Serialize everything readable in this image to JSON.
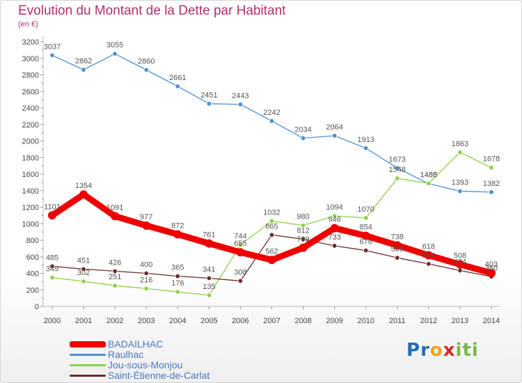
{
  "title": "Evolution du Montant de la Dette par Habitant",
  "subtitle": "(en €)",
  "logo": {
    "text": "Proxiti",
    "letters": [
      "P",
      "r",
      "o",
      "x",
      "i",
      "t",
      "i"
    ],
    "colors": [
      "#1f6db5",
      "#1f6db5",
      "#f0a020",
      "#d52a2a",
      "#7ab648",
      "#7ab648",
      "#7ab648"
    ]
  },
  "chart_data": {
    "type": "line",
    "x": [
      "2000",
      "2001",
      "2002",
      "2003",
      "2004",
      "2005",
      "2006",
      "2007",
      "2008",
      "2009",
      "2010",
      "2011",
      "2012",
      "2013",
      "2014"
    ],
    "ylim": [
      0,
      3200
    ],
    "yticks": [
      "0",
      "200",
      "400",
      "600",
      "800",
      "1000",
      "1200",
      "1400",
      "1600",
      "1800",
      "2000",
      "2200",
      "2400",
      "2600",
      "2800",
      "3000",
      "3200"
    ],
    "grid": false,
    "legend_position": "bottom-left",
    "series": [
      {
        "name": "BADAILHAC",
        "color": "#ee0000",
        "values": [
          1101,
          1354,
          1091,
          977,
          872,
          761,
          655,
          562,
          709,
          946,
          854,
          738,
          618,
          508,
          403
        ],
        "labels": [
          "1101",
          "1354",
          "1091",
          "977",
          "872",
          "761",
          "655",
          "562",
          "709",
          "946",
          "854",
          "738",
          "618",
          "508",
          "403"
        ]
      },
      {
        "name": "Raulhac",
        "color": "#4d8fd0",
        "values": [
          3037,
          2862,
          3055,
          2860,
          2661,
          2451,
          2443,
          2242,
          2034,
          2064,
          1913,
          1673,
          1485,
          1393,
          1382
        ],
        "labels": [
          "3037",
          "2862",
          "3055",
          "2860",
          "2661",
          "2451",
          "2443",
          "2242",
          "2034",
          "2064",
          "1913",
          "1673",
          "1485",
          "1393",
          "1382"
        ]
      },
      {
        "name": "Jou-sous-Monjou",
        "color": "#8fd04a",
        "values": [
          349,
          302,
          251,
          216,
          176,
          135,
          744,
          1032,
          980,
          1094,
          1070,
          1548,
          1488,
          1863,
          1678
        ],
        "labels": [
          "349",
          "302",
          "251",
          "216",
          "176",
          "135",
          "744",
          "1032",
          "980",
          "1094",
          "1070",
          "1548",
          "1488",
          "1863",
          "1678"
        ]
      },
      {
        "name": "Saint-Étienne-de-Carlat",
        "color": "#6e2a2a",
        "values": [
          485,
          451,
          426,
          400,
          365,
          341,
          308,
          865,
          812,
          733,
          676,
          588,
          514,
          434,
          360
        ],
        "labels": [
          "485",
          "451",
          "426",
          "400",
          "365",
          "341",
          "308",
          "865",
          "812",
          "733",
          "676",
          "588",
          "514",
          "434",
          "360"
        ]
      }
    ]
  }
}
